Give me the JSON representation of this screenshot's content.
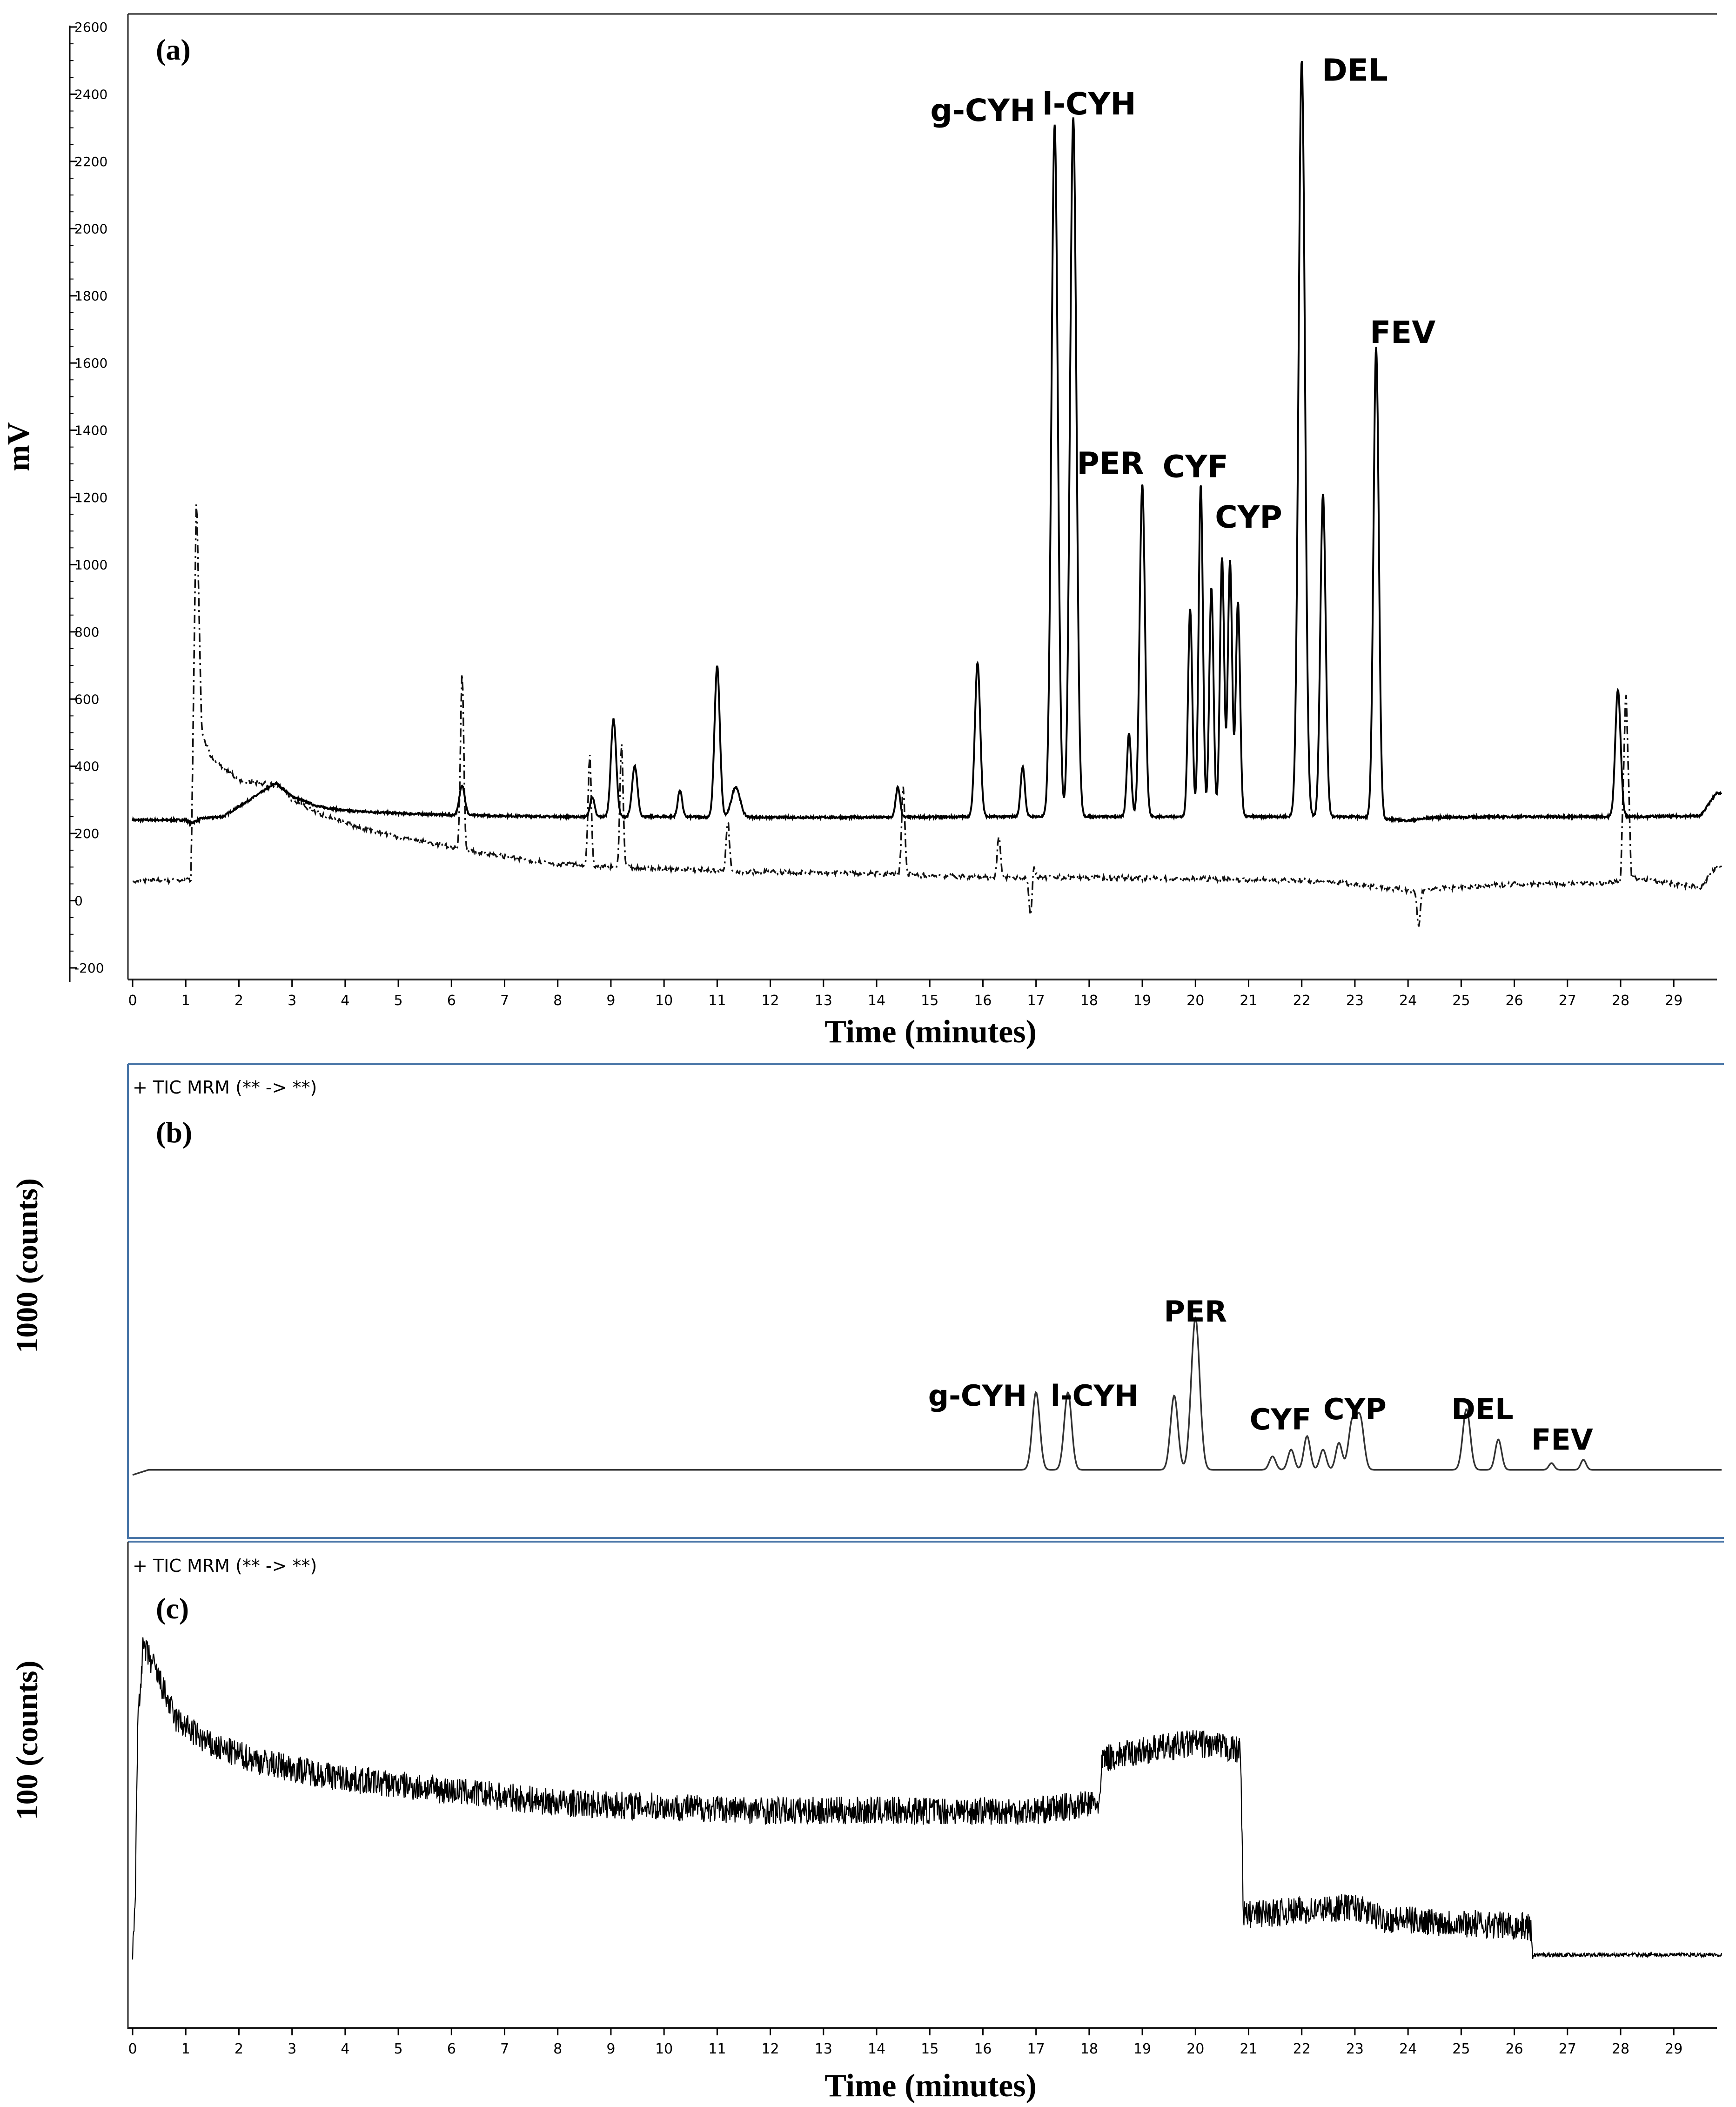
{
  "chart_data": [
    {
      "type": "line",
      "panel_label": "(a)",
      "ylabel": "mV",
      "xlabel": "Time (minutes)",
      "xlim": [
        0,
        29.9
      ],
      "ylim": [
        -200,
        2600
      ],
      "x_ticks": [
        0,
        1,
        2,
        3,
        4,
        5,
        6,
        7,
        8,
        9,
        10,
        11,
        12,
        13,
        14,
        15,
        16,
        17,
        18,
        19,
        20,
        21,
        22,
        23,
        24,
        25,
        26,
        27,
        28,
        29
      ],
      "y_ticks": [
        -200,
        0,
        200,
        400,
        600,
        800,
        1000,
        1200,
        1400,
        1600,
        1800,
        2000,
        2200,
        2400,
        2600
      ],
      "annotations": [
        {
          "text": "g-CYH",
          "x": 16.0,
          "y": 2320
        },
        {
          "text": "l-CYH",
          "x": 18.0,
          "y": 2340
        },
        {
          "text": "PER",
          "x": 18.4,
          "y": 1270
        },
        {
          "text": "CYF",
          "x": 20.0,
          "y": 1260
        },
        {
          "text": "CYP",
          "x": 21.0,
          "y": 1110
        },
        {
          "text": "DEL",
          "x": 23.0,
          "y": 2440
        },
        {
          "text": "FEV",
          "x": 23.9,
          "y": 1660
        }
      ],
      "series": [
        {
          "style": "solid",
          "baseline": 240,
          "points": [
            [
              0,
              240
            ],
            [
              1.0,
              240
            ],
            [
              1.1,
              230
            ],
            [
              1.3,
              245
            ],
            [
              1.7,
              250
            ],
            [
              2.2,
              300
            ],
            [
              2.7,
              350
            ],
            [
              3.0,
              310
            ],
            [
              3.5,
              280
            ],
            [
              4.0,
              268
            ],
            [
              5.0,
              260
            ],
            [
              6.0,
              255
            ],
            [
              8.0,
              250
            ],
            [
              10.0,
              250
            ],
            [
              12.0,
              248
            ],
            [
              14.0,
              248
            ],
            [
              16.0,
              250
            ],
            [
              18.0,
              250
            ],
            [
              20.0,
              250
            ],
            [
              22.0,
              250
            ],
            [
              23.0,
              250
            ],
            [
              24.0,
              238
            ],
            [
              24.5,
              248
            ],
            [
              26.0,
              250
            ],
            [
              28.0,
              250
            ],
            [
              29.5,
              252
            ],
            [
              29.8,
              320
            ]
          ],
          "peaks": [
            {
              "x": 6.2,
              "y": 330,
              "w": 0.05
            },
            {
              "x": 8.65,
              "y": 300,
              "w": 0.04
            },
            {
              "x": 9.05,
              "y": 530,
              "w": 0.05
            },
            {
              "x": 9.45,
              "y": 390,
              "w": 0.05
            },
            {
              "x": 10.3,
              "y": 320,
              "w": 0.04
            },
            {
              "x": 11.0,
              "y": 690,
              "w": 0.05
            },
            {
              "x": 11.35,
              "y": 330,
              "w": 0.08
            },
            {
              "x": 14.4,
              "y": 330,
              "w": 0.04
            },
            {
              "x": 15.9,
              "y": 700,
              "w": 0.05
            },
            {
              "x": 16.75,
              "y": 390,
              "w": 0.04
            },
            {
              "x": 17.35,
              "y": 2300,
              "w": 0.06
            },
            {
              "x": 17.7,
              "y": 2320,
              "w": 0.06
            },
            {
              "x": 18.75,
              "y": 490,
              "w": 0.04
            },
            {
              "x": 19.0,
              "y": 1230,
              "w": 0.05
            },
            {
              "x": 19.9,
              "y": 860,
              "w": 0.04
            },
            {
              "x": 20.1,
              "y": 1230,
              "w": 0.04
            },
            {
              "x": 20.3,
              "y": 920,
              "w": 0.04
            },
            {
              "x": 20.5,
              "y": 1010,
              "w": 0.04
            },
            {
              "x": 20.65,
              "y": 1000,
              "w": 0.04
            },
            {
              "x": 20.8,
              "y": 880,
              "w": 0.04
            },
            {
              "x": 22.0,
              "y": 2490,
              "w": 0.06
            },
            {
              "x": 22.4,
              "y": 1200,
              "w": 0.05
            },
            {
              "x": 23.4,
              "y": 1640,
              "w": 0.05
            },
            {
              "x": 27.95,
              "y": 620,
              "w": 0.05
            }
          ]
        },
        {
          "style": "dash-dot",
          "baseline": 60,
          "points": [
            [
              0,
              60
            ],
            [
              1.1,
              60
            ],
            [
              1.2,
              1230
            ],
            [
              1.3,
              500
            ],
            [
              1.5,
              420
            ],
            [
              2.0,
              360
            ],
            [
              2.8,
              340
            ],
            [
              3.0,
              300
            ],
            [
              3.5,
              260
            ],
            [
              4.0,
              230
            ],
            [
              5.0,
              190
            ],
            [
              6.0,
              160
            ],
            [
              7.0,
              130
            ],
            [
              8.0,
              110
            ],
            [
              9.0,
              100
            ],
            [
              10.0,
              95
            ],
            [
              12.0,
              85
            ],
            [
              14.0,
              80
            ],
            [
              16.0,
              70
            ],
            [
              18.0,
              68
            ],
            [
              20.0,
              65
            ],
            [
              22.0,
              60
            ],
            [
              23.0,
              50
            ],
            [
              24.0,
              30
            ],
            [
              25.0,
              40
            ],
            [
              26.0,
              50
            ],
            [
              27.0,
              50
            ],
            [
              28.0,
              55
            ],
            [
              28.1,
              650
            ],
            [
              28.2,
              70
            ],
            [
              29.0,
              50
            ],
            [
              29.5,
              40
            ],
            [
              29.8,
              100
            ]
          ],
          "spikes": [
            {
              "x": 6.2,
              "y": 680
            },
            {
              "x": 8.6,
              "y": 430
            },
            {
              "x": 9.2,
              "y": 460
            },
            {
              "x": 11.2,
              "y": 240
            },
            {
              "x": 14.5,
              "y": 340
            },
            {
              "x": 16.3,
              "y": 190
            },
            {
              "x": 16.95,
              "y": 120
            },
            {
              "x": 16.9,
              "y": -60
            },
            {
              "x": 24.2,
              "y": -80
            }
          ]
        }
      ]
    },
    {
      "type": "line",
      "panel_label": "(b)",
      "header": "+ TIC MRM (** -> **)",
      "ylabel": "1000 (counts)",
      "xlim": [
        0,
        29.9
      ],
      "ylim": [
        0,
        100
      ],
      "baseline": 5,
      "annotations": [
        {
          "text": "g-CYH",
          "x": 15.9,
          "y": 24
        },
        {
          "text": "l-CYH",
          "x": 18.1,
          "y": 24
        },
        {
          "text": "PER",
          "x": 20.0,
          "y": 49
        },
        {
          "text": "CYF",
          "x": 21.6,
          "y": 17
        },
        {
          "text": "CYP",
          "x": 23.0,
          "y": 20
        },
        {
          "text": "DEL",
          "x": 25.4,
          "y": 20
        },
        {
          "text": "FEV",
          "x": 26.9,
          "y": 11
        }
      ],
      "peaks": [
        {
          "x": 17.0,
          "y": 23,
          "w": 0.07
        },
        {
          "x": 17.6,
          "y": 23,
          "w": 0.07
        },
        {
          "x": 19.6,
          "y": 22,
          "w": 0.07
        },
        {
          "x": 20.0,
          "y": 45,
          "w": 0.08
        },
        {
          "x": 21.45,
          "y": 4,
          "w": 0.06
        },
        {
          "x": 21.8,
          "y": 6,
          "w": 0.06
        },
        {
          "x": 22.1,
          "y": 10,
          "w": 0.06
        },
        {
          "x": 22.4,
          "y": 6,
          "w": 0.06
        },
        {
          "x": 22.7,
          "y": 8,
          "w": 0.06
        },
        {
          "x": 22.95,
          "y": 14,
          "w": 0.07
        },
        {
          "x": 23.1,
          "y": 15,
          "w": 0.07
        },
        {
          "x": 25.1,
          "y": 18,
          "w": 0.07
        },
        {
          "x": 25.7,
          "y": 9,
          "w": 0.06
        },
        {
          "x": 26.7,
          "y": 2,
          "w": 0.05
        },
        {
          "x": 27.3,
          "y": 3,
          "w": 0.05
        }
      ]
    },
    {
      "type": "line",
      "panel_label": "(c)",
      "header": "+ TIC MRM (** -> **)",
      "ylabel": "100 (counts)",
      "xlabel": "Time (minutes)",
      "xlim": [
        0,
        29.9
      ],
      "x_ticks": [
        0,
        1,
        2,
        3,
        4,
        5,
        6,
        7,
        8,
        9,
        10,
        11,
        12,
        13,
        14,
        15,
        16,
        17,
        18,
        19,
        20,
        21,
        22,
        23,
        24,
        25,
        26,
        27,
        28,
        29
      ],
      "ylim": [
        0,
        100
      ],
      "noise_amplitude": 3.5,
      "points": [
        [
          0.0,
          14
        ],
        [
          0.05,
          30
        ],
        [
          0.1,
          75
        ],
        [
          0.2,
          92
        ],
        [
          0.4,
          87
        ],
        [
          0.8,
          74
        ],
        [
          1.5,
          67
        ],
        [
          2.5,
          63
        ],
        [
          4.0,
          59
        ],
        [
          6.0,
          56
        ],
        [
          8.0,
          53
        ],
        [
          10.0,
          52
        ],
        [
          12.0,
          51
        ],
        [
          14.0,
          51
        ],
        [
          16.0,
          51
        ],
        [
          17.0,
          51
        ],
        [
          18.2,
          53
        ],
        [
          18.25,
          64
        ],
        [
          19.0,
          66
        ],
        [
          20.0,
          68
        ],
        [
          20.85,
          66
        ],
        [
          20.9,
          25
        ],
        [
          22.0,
          26
        ],
        [
          23.0,
          27
        ],
        [
          23.5,
          24
        ],
        [
          26.3,
          22
        ],
        [
          26.35,
          15
        ],
        [
          29.8,
          15
        ]
      ]
    }
  ]
}
